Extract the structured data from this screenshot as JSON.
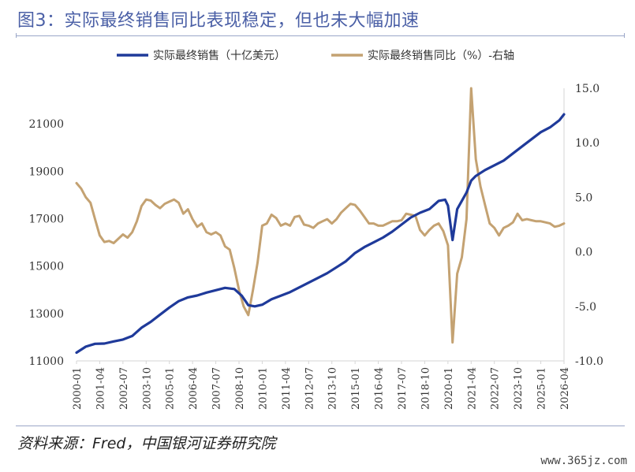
{
  "figure": {
    "title": "图3：实际最终销售同比表现稳定，但也未大幅加速",
    "source": "资料来源：Fred，中国银河证券研究院",
    "watermark": "www.365jz.com"
  },
  "colors": {
    "level": "#1f3a9a",
    "yoy": "#c4a272",
    "axis": "#d6d6d6",
    "text": "#333333"
  },
  "chart_data": {
    "type": "line",
    "legend_position": "top",
    "categories": [
      "2000-01",
      "2001-04",
      "2002-07",
      "2003-10",
      "2005-01",
      "2006-04",
      "2007-07",
      "2008-10",
      "2010-01",
      "2011-04",
      "2012-07",
      "2013-10",
      "2015-01",
      "2016-04",
      "2017-07",
      "2018-10",
      "2020-01",
      "2021-04",
      "2022-07",
      "2023-10",
      "2025-01",
      "2026-04"
    ],
    "y_left": {
      "ticks": [
        "11000",
        "13000",
        "15000",
        "17000",
        "19000",
        "21000"
      ],
      "range": [
        11000,
        22500
      ]
    },
    "y_right": {
      "ticks": [
        "15.0",
        "10.0",
        "5.0",
        "0.0",
        "-5.0",
        "-10.0"
      ],
      "range": [
        -10,
        15
      ]
    },
    "series": [
      {
        "name": "实际最终销售（十亿美元）",
        "axis": "left",
        "x": [
          2000.0,
          2000.5,
          2001.0,
          2001.5,
          2002.0,
          2002.5,
          2003.0,
          2003.5,
          2004.0,
          2004.5,
          2005.0,
          2005.5,
          2006.0,
          2006.5,
          2007.0,
          2007.5,
          2008.0,
          2008.5,
          2008.9,
          2009.25,
          2009.6,
          2010.0,
          2010.5,
          2011.0,
          2011.5,
          2012.0,
          2012.5,
          2013.0,
          2013.5,
          2014.0,
          2014.5,
          2015.0,
          2015.5,
          2016.0,
          2016.5,
          2017.0,
          2017.5,
          2018.0,
          2018.5,
          2019.0,
          2019.5,
          2019.85,
          2020.0,
          2020.25,
          2020.5,
          2021.0,
          2021.25,
          2021.5,
          2022.0,
          2022.5,
          2023.0,
          2023.5,
          2024.0,
          2024.5,
          2025.0,
          2025.5,
          2026.0,
          2026.25
        ],
        "y": [
          11350,
          11600,
          11720,
          11730,
          11820,
          11900,
          12050,
          12400,
          12650,
          12950,
          13250,
          13520,
          13680,
          13760,
          13880,
          13980,
          14080,
          14030,
          13750,
          13350,
          13300,
          13370,
          13600,
          13750,
          13900,
          14100,
          14300,
          14500,
          14700,
          14950,
          15200,
          15550,
          15800,
          16000,
          16200,
          16450,
          16750,
          17050,
          17250,
          17400,
          17750,
          17800,
          17550,
          16100,
          17400,
          18100,
          18600,
          18800,
          19050,
          19250,
          19450,
          19750,
          20050,
          20350,
          20650,
          20850,
          21150,
          21400
        ]
      },
      {
        "name": "实际最终销售同比（%）-右轴",
        "axis": "right",
        "x": [
          2000.0,
          2000.25,
          2000.5,
          2000.75,
          2001.0,
          2001.25,
          2001.5,
          2001.75,
          2002.0,
          2002.25,
          2002.5,
          2002.75,
          2003.0,
          2003.25,
          2003.5,
          2003.75,
          2004.0,
          2004.25,
          2004.5,
          2004.75,
          2005.0,
          2005.25,
          2005.5,
          2005.75,
          2006.0,
          2006.25,
          2006.5,
          2006.75,
          2007.0,
          2007.25,
          2007.5,
          2007.75,
          2008.0,
          2008.25,
          2008.5,
          2008.75,
          2009.0,
          2009.25,
          2009.5,
          2009.75,
          2010.0,
          2010.25,
          2010.5,
          2010.75,
          2011.0,
          2011.25,
          2011.5,
          2011.75,
          2012.0,
          2012.25,
          2012.5,
          2012.75,
          2013.0,
          2013.25,
          2013.5,
          2013.75,
          2014.0,
          2014.25,
          2014.5,
          2014.75,
          2015.0,
          2015.25,
          2015.5,
          2015.75,
          2016.0,
          2016.25,
          2016.5,
          2016.75,
          2017.0,
          2017.25,
          2017.5,
          2017.75,
          2018.0,
          2018.25,
          2018.5,
          2018.75,
          2019.0,
          2019.25,
          2019.5,
          2019.75,
          2020.0,
          2020.25,
          2020.5,
          2020.75,
          2021.0,
          2021.25,
          2021.5,
          2021.75,
          2022.0,
          2022.25,
          2022.5,
          2022.75,
          2023.0,
          2023.25,
          2023.5,
          2023.75,
          2024.0,
          2024.25,
          2024.5,
          2024.75,
          2025.0,
          2025.25,
          2025.5,
          2025.75,
          2026.0,
          2026.25
        ],
        "y": [
          6.3,
          5.8,
          5.0,
          4.5,
          3.0,
          1.5,
          0.9,
          1.0,
          0.8,
          1.2,
          1.6,
          1.3,
          1.8,
          2.8,
          4.2,
          4.8,
          4.7,
          4.3,
          4.0,
          4.4,
          4.6,
          4.8,
          4.5,
          3.5,
          3.9,
          3.0,
          2.3,
          2.6,
          1.8,
          1.6,
          1.8,
          1.5,
          0.5,
          0.2,
          -1.5,
          -3.5,
          -5.0,
          -5.8,
          -3.5,
          -1.0,
          2.4,
          2.6,
          3.4,
          3.1,
          2.4,
          2.6,
          2.4,
          3.2,
          3.3,
          2.5,
          2.4,
          2.2,
          2.6,
          2.8,
          3.0,
          2.6,
          3.0,
          3.6,
          4.0,
          4.4,
          4.3,
          3.8,
          3.2,
          2.6,
          2.6,
          2.4,
          2.4,
          2.6,
          2.8,
          2.8,
          2.9,
          3.5,
          3.4,
          3.3,
          2.0,
          1.5,
          2.0,
          2.4,
          2.6,
          1.9,
          0.6,
          -8.3,
          -2.0,
          -0.5,
          3.0,
          15.0,
          8.5,
          6.0,
          4.3,
          2.6,
          2.2,
          1.5,
          2.2,
          2.4,
          2.7,
          3.5,
          2.9,
          3.0,
          2.9,
          2.8,
          2.8,
          2.7,
          2.6,
          2.3,
          2.4,
          2.6
        ]
      }
    ]
  }
}
